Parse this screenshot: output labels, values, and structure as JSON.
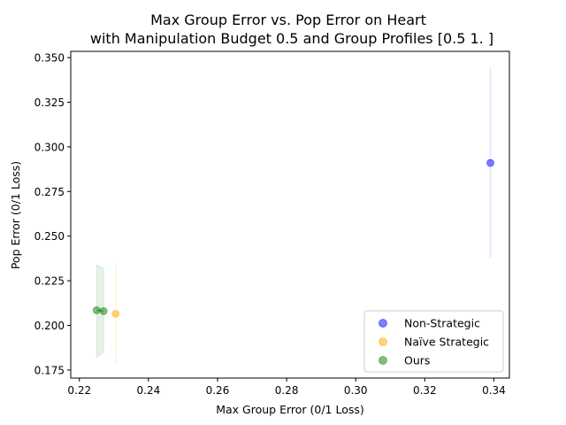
{
  "chart_data": {
    "type": "scatter",
    "title_line1": "Max Group Error vs. Pop Error on Heart",
    "title_line2": "with Manipulation Budget 0.5 and Group Profiles [0.5 1. ]",
    "xlabel": "Max Group Error (0/1 Loss)",
    "ylabel": "Pop Error (0/1 Loss)",
    "xlim": [
      0.2175,
      0.3445
    ],
    "ylim": [
      0.1705,
      0.3535
    ],
    "xticks": [
      "0.22",
      "0.24",
      "0.26",
      "0.28",
      "0.30",
      "0.32",
      "0.34"
    ],
    "xtick_values": [
      0.22,
      0.24,
      0.26,
      0.28,
      0.3,
      0.32,
      0.34
    ],
    "yticks": [
      "0.175",
      "0.200",
      "0.225",
      "0.250",
      "0.275",
      "0.300",
      "0.325",
      "0.350"
    ],
    "ytick_values": [
      0.175,
      0.2,
      0.225,
      0.25,
      0.275,
      0.3,
      0.325,
      0.35
    ],
    "grid": false,
    "legend_position": "lower-right",
    "series": [
      {
        "name": "Non-Strategic",
        "color": "#0000ff",
        "points": [
          {
            "x": 0.339,
            "y": 0.291
          }
        ],
        "error_band": {
          "x": [
            0.339
          ],
          "y_low": [
            0.238
          ],
          "y_high": [
            0.344
          ]
        }
      },
      {
        "name": "Naïve Strategic",
        "color": "#ffa500",
        "points": [
          {
            "x": 0.2305,
            "y": 0.2065
          }
        ],
        "error_band": {
          "x": [
            0.2305
          ],
          "y_low": [
            0.178
          ],
          "y_high": [
            0.235
          ]
        }
      },
      {
        "name": "Ours",
        "color": "#008000",
        "points": [
          {
            "x": 0.225,
            "y": 0.2085
          },
          {
            "x": 0.227,
            "y": 0.208
          }
        ],
        "error_band": {
          "x": [
            0.225,
            0.227
          ],
          "y_low": [
            0.182,
            0.185
          ],
          "y_high": [
            0.234,
            0.232
          ]
        }
      }
    ]
  }
}
